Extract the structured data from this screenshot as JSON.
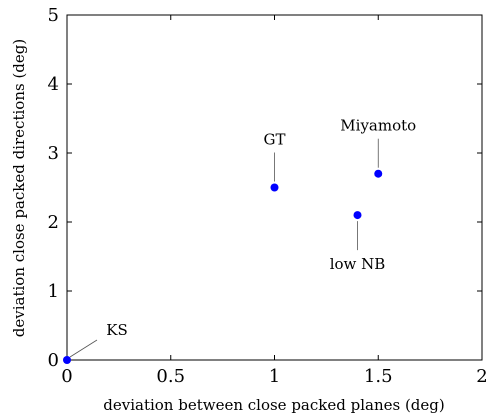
{
  "chart_data": {
    "type": "scatter",
    "xlabel": "deviation between close packed planes (deg)",
    "ylabel": "deviation close packed directions (deg)",
    "xlim": [
      0,
      2
    ],
    "ylim": [
      0,
      5
    ],
    "xticks": [
      0,
      0.5,
      1,
      1.5,
      2
    ],
    "yticks": [
      0,
      1,
      2,
      3,
      4,
      5
    ],
    "xtick_labels": [
      "0",
      "0.5",
      "1",
      "1.5",
      "2"
    ],
    "ytick_labels": [
      "0",
      "1",
      "2",
      "3",
      "4",
      "5"
    ],
    "grid": false,
    "legend": false,
    "marker_color": "#0000ff",
    "points": [
      {
        "x": 0,
        "y": 0,
        "label": "KS"
      },
      {
        "x": 1,
        "y": 2.5,
        "label": "GT"
      },
      {
        "x": 1.4,
        "y": 2.1,
        "label": "low NB"
      },
      {
        "x": 1.5,
        "y": 2.7,
        "label": "Miyamoto"
      }
    ]
  }
}
